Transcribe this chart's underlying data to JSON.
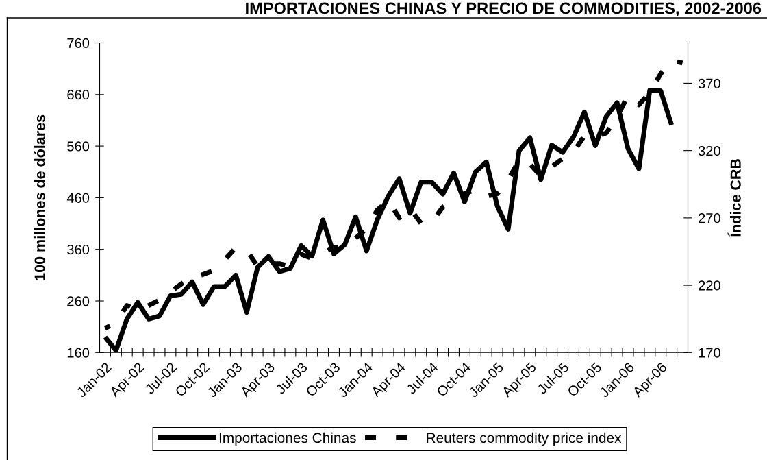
{
  "chart_data": {
    "type": "line",
    "title": "IMPORTACIONES CHINAS Y PRECIO DE COMMODITIES, 2002-2006",
    "ylabel": "100 millones de dólares",
    "y2label": "Índice CRB",
    "categories": [
      "Jan-02",
      null,
      null,
      "Apr-02",
      null,
      null,
      "Jul-02",
      null,
      null,
      "Oct-02",
      null,
      null,
      "Jan-03",
      null,
      null,
      "Apr-03",
      null,
      null,
      "Jul-03",
      null,
      null,
      "Oct-03",
      null,
      null,
      "Jan-04",
      null,
      null,
      "Apr-04",
      null,
      null,
      "Jul-04",
      null,
      null,
      "Oct-04",
      null,
      null,
      "Jan-05",
      null,
      null,
      "Apr-05",
      null,
      null,
      "Jul-05",
      null,
      null,
      "Oct-05",
      null,
      null,
      "Jan-06",
      null,
      null,
      "Apr-06",
      null,
      null
    ],
    "series": [
      {
        "name": "Importaciones Chinas",
        "color": "#000000",
        "line_style": "solid",
        "values": [
          190,
          164,
          225,
          257,
          225,
          231,
          270,
          273,
          297,
          253,
          288,
          288,
          310,
          238,
          325,
          346,
          317,
          323,
          367,
          347,
          417,
          351,
          369,
          423,
          357,
          418,
          463,
          497,
          430,
          490,
          490,
          467,
          508,
          452,
          510,
          529,
          444,
          399,
          551,
          576,
          495,
          562,
          548,
          578,
          626,
          561,
          617,
          644,
          555,
          516,
          668,
          667,
          601,
          null
        ]
      },
      {
        "name": "Reuters commodity price index",
        "color": "#000000",
        "line_style": "dashed",
        "axis": "y2",
        "values": [
          188,
          192,
          205,
          201,
          205,
          209,
          215,
          221,
          226,
          228,
          231,
          239,
          248,
          246,
          234,
          236,
          236,
          234,
          243,
          240,
          244,
          248,
          249,
          255,
          262,
          276,
          283,
          270,
          277,
          266,
          267,
          278,
          283,
          288,
          291,
          286,
          288,
          298,
          313,
          310,
          301,
          308,
          314,
          319,
          331,
          330,
          333,
          345,
          361,
          354,
          363,
          377,
          387,
          385
        ]
      }
    ],
    "ylim": [
      160,
      760
    ],
    "yticks": [
      160,
      260,
      360,
      460,
      560,
      660,
      760
    ],
    "y2lim": [
      170,
      400
    ],
    "y2ticks": [
      170,
      220,
      270,
      320,
      370
    ],
    "legend": "bottom"
  }
}
